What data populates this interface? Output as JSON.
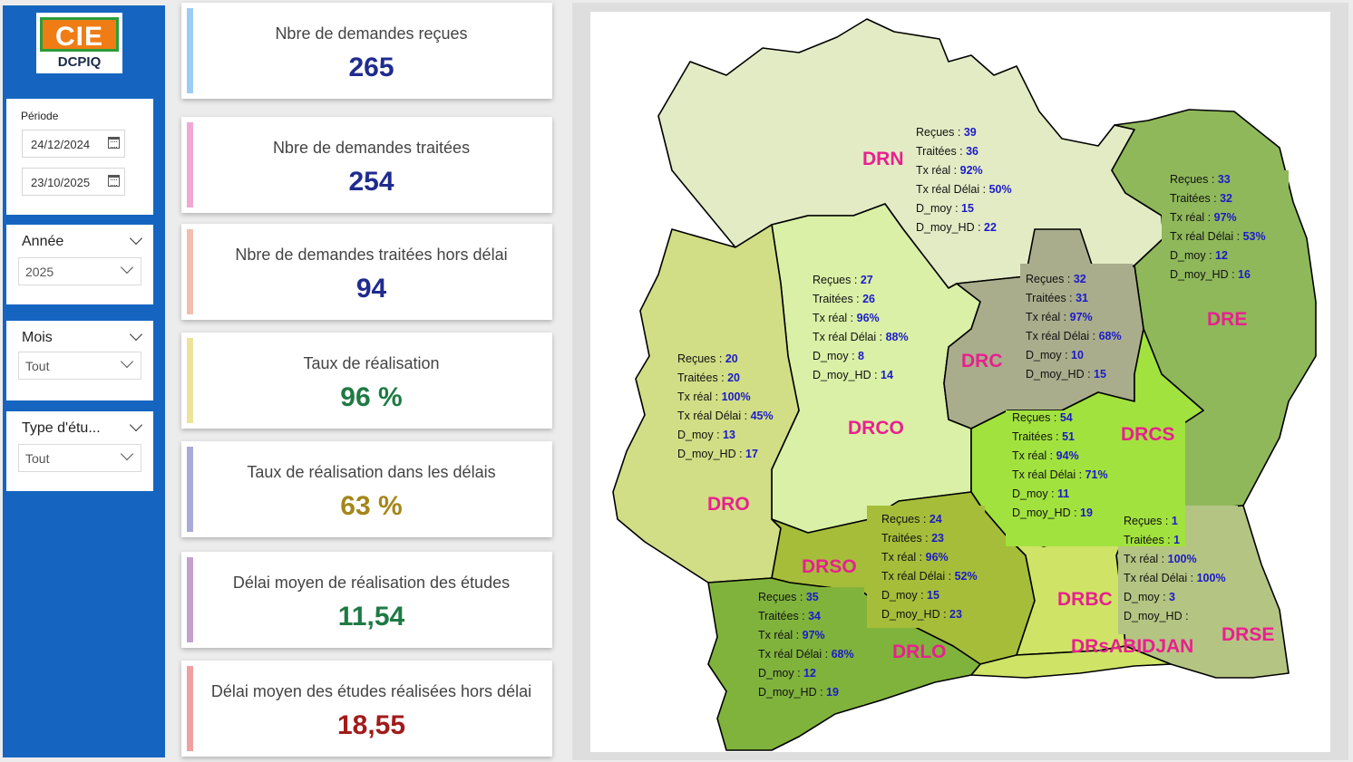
{
  "logo": {
    "brand": "CIE",
    "subtitle": "DCPIQ"
  },
  "filters": {
    "period_label": "Période",
    "date_start": "24/12/2024",
    "date_end": "23/10/2025",
    "year": {
      "title": "Année",
      "value": "2025"
    },
    "month": {
      "title": "Mois",
      "value": "Tout"
    },
    "study_type": {
      "title": "Type d'étu...",
      "value": "Tout"
    }
  },
  "kpis": [
    {
      "label": "Nbre de demandes reçues",
      "value": "265",
      "color": "#1f2b8f",
      "accent": "#9dccf2"
    },
    {
      "label": "Nbre de demandes traitées",
      "value": "254",
      "color": "#1f2b8f",
      "accent": "#efa9d4"
    },
    {
      "label": "Nbre de demandes traitées hors délai",
      "value": "94",
      "color": "#1f2b8f",
      "accent": "#f1bfae"
    },
    {
      "label": "Taux de réalisation",
      "value": "96 %",
      "color": "#1e7a44",
      "accent": "#ede29a"
    },
    {
      "label": "Taux de réalisation dans les délais",
      "value": "63 %",
      "color": "#a4861a",
      "accent": "#a9a9da"
    },
    {
      "label": "Délai moyen de réalisation des études",
      "value": "11,54",
      "color": "#1e7a44",
      "accent": "#c4a0cf"
    },
    {
      "label": "Délai moyen des études réalisées hors délai",
      "value": "18,55",
      "color": "#a11b1b",
      "accent": "#f0a0a0"
    }
  ],
  "stat_labels": [
    "Reçues : ",
    "Traitées : ",
    "Tx réal : ",
    "Tx réal Délai : ",
    "D_moy : ",
    "D_moy_HD : "
  ],
  "regions": [
    {
      "name": "DRN",
      "fill": "#e3ebc5",
      "stats": [
        "39",
        "36",
        "92%",
        "50%",
        "15",
        "22"
      ]
    },
    {
      "name": "DRE",
      "fill": "#8fb85a",
      "stats": [
        "33",
        "32",
        "97%",
        "53%",
        "12",
        "16"
      ]
    },
    {
      "name": "DRCO",
      "fill": "#d9f0a6",
      "stats": [
        "27",
        "26",
        "96%",
        "88%",
        "8",
        "14"
      ]
    },
    {
      "name": "DRC",
      "fill": "#a9ad8c",
      "stats": [
        "32",
        "31",
        "97%",
        "68%",
        "10",
        "15"
      ]
    },
    {
      "name": "DRO",
      "fill": "#d1de85",
      "stats": [
        "20",
        "20",
        "100%",
        "45%",
        "13",
        "17"
      ]
    },
    {
      "name": "DRCS",
      "fill": "#a2e23e",
      "stats": [
        "54",
        "51",
        "94%",
        "71%",
        "11",
        "19"
      ]
    },
    {
      "name": "DRSO",
      "fill": "#a6bd3a",
      "stats": [
        "24",
        "23",
        "96%",
        "52%",
        "15",
        "23"
      ]
    },
    {
      "name": "DRSE",
      "fill": "#b4c482",
      "stats": [
        "1",
        "1",
        "100%",
        "100%",
        "3",
        ""
      ]
    },
    {
      "name": "DRLO",
      "fill": "#80b33c",
      "stats": [
        "35",
        "34",
        "97%",
        "68%",
        "12",
        "19"
      ]
    },
    {
      "name": "DRBC",
      "fill": "#cfe466",
      "stats": []
    },
    {
      "name": "DRsABIDJAN",
      "fill": "#cfe466",
      "stats": []
    }
  ]
}
